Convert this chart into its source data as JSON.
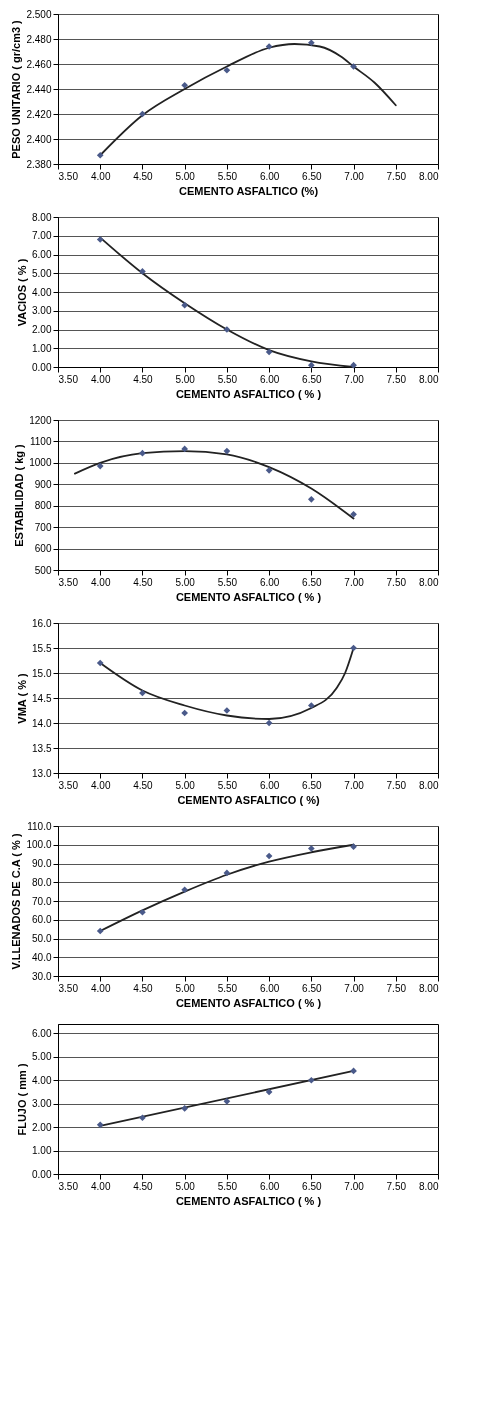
{
  "chart_data": [
    {
      "type": "scatter",
      "xlabel": "CEMENTO ASFALTICO (%)",
      "ylabel": "PESO UNITARIO ( gr/cm3 )",
      "grid": "y",
      "xlim": [
        3.5,
        8.0
      ],
      "ylim": [
        2.38,
        2.5
      ],
      "xticks": [
        {
          "value": 3.5,
          "label": "3.50"
        },
        {
          "value": 4.0,
          "label": "4.00"
        },
        {
          "value": 4.5,
          "label": "4.50"
        },
        {
          "value": 5.0,
          "label": "5.00"
        },
        {
          "value": 5.5,
          "label": "5.50"
        },
        {
          "value": 6.0,
          "label": "6.00"
        },
        {
          "value": 6.5,
          "label": "6.50"
        },
        {
          "value": 7.0,
          "label": "7.00"
        },
        {
          "value": 7.5,
          "label": "7.50"
        },
        {
          "value": 8.0,
          "label": "8.00"
        }
      ],
      "yticks": [
        {
          "value": 2.38,
          "label": "2.380"
        },
        {
          "value": 2.4,
          "label": "2.400"
        },
        {
          "value": 2.42,
          "label": "2.420"
        },
        {
          "value": 2.44,
          "label": "2.440"
        },
        {
          "value": 2.46,
          "label": "2.460"
        },
        {
          "value": 2.48,
          "label": "2.480"
        },
        {
          "value": 2.5,
          "label": "2.500"
        }
      ],
      "series": [
        {
          "marker": "diamond",
          "color": "#4a5a8a",
          "x": [
            4.0,
            4.5,
            5.0,
            5.5,
            6.0,
            6.5,
            7.0
          ],
          "values": [
            2.387,
            2.42,
            2.443,
            2.455,
            2.474,
            2.477,
            2.458
          ]
        },
        {
          "type": "line",
          "line_style": "solid",
          "color": "#222222",
          "x": [
            4.0,
            4.5,
            5.0,
            5.5,
            6.0,
            6.3,
            6.6,
            6.85,
            7.0,
            7.25,
            7.5
          ],
          "values": [
            2.387,
            2.419,
            2.44,
            2.458,
            2.473,
            2.476,
            2.474,
            2.466,
            2.458,
            2.445,
            2.427
          ]
        }
      ]
    },
    {
      "type": "scatter",
      "xlabel": "CEMENTO ASFALTICO ( % )",
      "ylabel": "VACIOS ( % )",
      "grid": "y",
      "xlim": [
        3.5,
        8.0
      ],
      "ylim": [
        0,
        8
      ],
      "xticks": [
        {
          "value": 3.5,
          "label": "3.50"
        },
        {
          "value": 4.0,
          "label": "4.00"
        },
        {
          "value": 4.5,
          "label": "4.50"
        },
        {
          "value": 5.0,
          "label": "5.00"
        },
        {
          "value": 5.5,
          "label": "5.50"
        },
        {
          "value": 6.0,
          "label": "6.00"
        },
        {
          "value": 6.5,
          "label": "6.50"
        },
        {
          "value": 7.0,
          "label": "7.00"
        },
        {
          "value": 7.5,
          "label": "7.50"
        },
        {
          "value": 8.0,
          "label": "8.00"
        }
      ],
      "yticks": [
        {
          "value": 0,
          "label": "0.00"
        },
        {
          "value": 1,
          "label": "1.00"
        },
        {
          "value": 2,
          "label": "2.00"
        },
        {
          "value": 3,
          "label": "3.00"
        },
        {
          "value": 4,
          "label": "4.00"
        },
        {
          "value": 5,
          "label": "5.00"
        },
        {
          "value": 6,
          "label": "6.00"
        },
        {
          "value": 7,
          "label": "7.00"
        },
        {
          "value": 8,
          "label": "8.00"
        }
      ],
      "series": [
        {
          "marker": "diamond",
          "color": "#4a5a8a",
          "x": [
            4.0,
            4.5,
            5.0,
            5.5,
            6.0,
            6.5,
            7.0
          ],
          "values": [
            6.8,
            5.1,
            3.3,
            2.0,
            0.8,
            0.1,
            0.1
          ]
        },
        {
          "type": "line",
          "line_style": "solid",
          "color": "#222222",
          "x": [
            4.0,
            4.5,
            5.0,
            5.5,
            6.0,
            6.5,
            7.0
          ],
          "values": [
            6.9,
            5.0,
            3.4,
            2.0,
            0.9,
            0.3,
            0.0
          ]
        }
      ]
    },
    {
      "type": "scatter",
      "xlabel": "CEMENTO ASFALTICO ( % )",
      "ylabel": "ESTABILIDAD ( kg )",
      "grid": "y",
      "xlim": [
        3.5,
        8.0
      ],
      "ylim": [
        500,
        1200
      ],
      "xticks": [
        {
          "value": 3.5,
          "label": "3.50"
        },
        {
          "value": 4.0,
          "label": "4.00"
        },
        {
          "value": 4.5,
          "label": "4.50"
        },
        {
          "value": 5.0,
          "label": "5.00"
        },
        {
          "value": 5.5,
          "label": "5.50"
        },
        {
          "value": 6.0,
          "label": "6.00"
        },
        {
          "value": 6.5,
          "label": "6.50"
        },
        {
          "value": 7.0,
          "label": "7.00"
        },
        {
          "value": 7.5,
          "label": "7.50"
        },
        {
          "value": 8.0,
          "label": "8.00"
        }
      ],
      "yticks": [
        500,
        600,
        700,
        800,
        900,
        1000,
        1100,
        1200
      ],
      "series": [
        {
          "marker": "diamond",
          "color": "#4a5a8a",
          "x": [
            4.0,
            4.5,
            5.0,
            5.5,
            6.0,
            6.5,
            7.0
          ],
          "values": [
            985,
            1045,
            1065,
            1055,
            965,
            830,
            760
          ]
        },
        {
          "type": "line",
          "line_style": "solid",
          "color": "#222222",
          "x": [
            3.7,
            4.0,
            4.5,
            5.0,
            5.5,
            6.0,
            6.5,
            7.0
          ],
          "values": [
            950,
            1000,
            1045,
            1055,
            1040,
            980,
            880,
            740
          ]
        }
      ]
    },
    {
      "type": "scatter",
      "xlabel": "CEMENTO ASFALTICO ( %)",
      "ylabel": "VMA ( % )",
      "grid": "y",
      "xlim": [
        3.5,
        8.0
      ],
      "ylim": [
        13.0,
        16.0
      ],
      "xticks": [
        {
          "value": 3.5,
          "label": "3.50"
        },
        {
          "value": 4.0,
          "label": "4.00"
        },
        {
          "value": 4.5,
          "label": "4.50"
        },
        {
          "value": 5.0,
          "label": "5.00"
        },
        {
          "value": 5.5,
          "label": "5.50"
        },
        {
          "value": 6.0,
          "label": "6.00"
        },
        {
          "value": 6.5,
          "label": "6.50"
        },
        {
          "value": 7.0,
          "label": "7.00"
        },
        {
          "value": 7.5,
          "label": "7.50"
        },
        {
          "value": 8.0,
          "label": "8.00"
        }
      ],
      "yticks": [
        {
          "value": 13.0,
          "label": "13.0"
        },
        13.5,
        {
          "value": 14.0,
          "label": "14.0"
        },
        14.5,
        {
          "value": 15.0,
          "label": "15.0"
        },
        15.5,
        {
          "value": 16.0,
          "label": "16.0"
        }
      ],
      "series": [
        {
          "marker": "diamond",
          "color": "#4a5a8a",
          "x": [
            4.0,
            4.5,
            5.0,
            5.5,
            6.0,
            6.5,
            7.0
          ],
          "values": [
            15.2,
            14.6,
            14.2,
            14.25,
            14.0,
            14.35,
            15.5
          ]
        },
        {
          "type": "line",
          "line_style": "solid",
          "color": "#222222",
          "x": [
            4.0,
            4.5,
            5.0,
            5.5,
            6.0,
            6.5,
            6.8,
            6.9,
            7.0
          ],
          "values": [
            15.2,
            14.65,
            14.35,
            14.15,
            14.08,
            14.3,
            14.7,
            15.0,
            15.5
          ]
        }
      ]
    },
    {
      "type": "scatter",
      "xlabel": "CEMENTO ASFALTICO ( % )",
      "ylabel": "V.LLENADOS DE C.A ( % )",
      "grid": "y",
      "xlim": [
        3.5,
        8.0
      ],
      "ylim": [
        30,
        110
      ],
      "xticks": [
        {
          "value": 3.5,
          "label": "3.50"
        },
        {
          "value": 4.0,
          "label": "4.00"
        },
        {
          "value": 4.5,
          "label": "4.50"
        },
        {
          "value": 5.0,
          "label": "5.00"
        },
        {
          "value": 5.5,
          "label": "5.50"
        },
        {
          "value": 6.0,
          "label": "6.00"
        },
        {
          "value": 6.5,
          "label": "6.50"
        },
        {
          "value": 7.0,
          "label": "7.00"
        },
        {
          "value": 7.5,
          "label": "7.50"
        },
        {
          "value": 8.0,
          "label": "8.00"
        }
      ],
      "yticks": [
        {
          "value": 30,
          "label": "30.0"
        },
        {
          "value": 40,
          "label": "40.0"
        },
        {
          "value": 50,
          "label": "50.0"
        },
        {
          "value": 60,
          "label": "60.0"
        },
        {
          "value": 70,
          "label": "70.0"
        },
        {
          "value": 80,
          "label": "80.0"
        },
        {
          "value": 90,
          "label": "90.0"
        },
        {
          "value": 100,
          "label": "100.0"
        },
        {
          "value": 110,
          "label": "110.0"
        }
      ],
      "series": [
        {
          "marker": "diamond",
          "color": "#4a5a8a",
          "x": [
            4.0,
            4.5,
            5.0,
            5.5,
            6.0,
            6.5,
            7.0
          ],
          "values": [
            54,
            64,
            76,
            85,
            94,
            98,
            99
          ]
        },
        {
          "type": "line",
          "line_style": "solid",
          "color": "#222222",
          "x": [
            4.0,
            4.5,
            5.0,
            5.5,
            6.0,
            6.5,
            7.0
          ],
          "values": [
            54,
            65,
            75,
            84,
            91,
            96,
            100
          ]
        }
      ]
    },
    {
      "type": "scatter",
      "xlabel": "CEMENTO ASFALTICO ( % )",
      "ylabel": "FLUJO ( mm )",
      "grid": "y",
      "xlim": [
        3.5,
        8.0
      ],
      "ylim": [
        0,
        6.4
      ],
      "xticks": [
        {
          "value": 3.5,
          "label": "3.50"
        },
        {
          "value": 4.0,
          "label": "4.00"
        },
        {
          "value": 4.5,
          "label": "4.50"
        },
        {
          "value": 5.0,
          "label": "5.00"
        },
        {
          "value": 5.5,
          "label": "5.50"
        },
        {
          "value": 6.0,
          "label": "6.00"
        },
        {
          "value": 6.5,
          "label": "6.50"
        },
        {
          "value": 7.0,
          "label": "7.00"
        },
        {
          "value": 7.5,
          "label": "7.50"
        },
        {
          "value": 8.0,
          "label": "8.00"
        }
      ],
      "yticks": [
        {
          "value": 0,
          "label": "0.00"
        },
        {
          "value": 1,
          "label": "1.00"
        },
        {
          "value": 2,
          "label": "2.00"
        },
        {
          "value": 3,
          "label": "3.00"
        },
        {
          "value": 4,
          "label": "4.00"
        },
        {
          "value": 5,
          "label": "5.00"
        },
        {
          "value": 6,
          "label": "6.00"
        }
      ],
      "series": [
        {
          "marker": "diamond",
          "color": "#4a5a8a",
          "x": [
            4.0,
            4.5,
            5.0,
            5.5,
            6.0,
            6.5,
            7.0
          ],
          "values": [
            2.1,
            2.4,
            2.8,
            3.1,
            3.5,
            4.0,
            4.4
          ]
        },
        {
          "type": "line",
          "line_style": "solid",
          "color": "#222222",
          "x": [
            4.0,
            7.0
          ],
          "values": [
            2.05,
            4.4
          ]
        }
      ]
    }
  ]
}
